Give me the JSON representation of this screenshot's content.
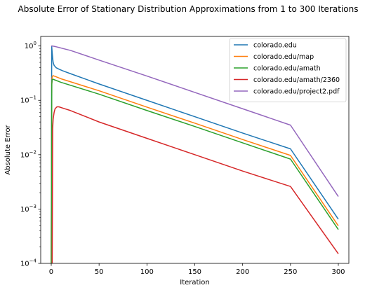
{
  "chart_data": {
    "type": "line",
    "title": "Absolute Error of Stationary Distribution Approximations from 1 to 300 Iterations",
    "xlabel": "Iteration",
    "ylabel": "Absolute Error",
    "xlim": [
      -11,
      311
    ],
    "ylim": [
      0.0001,
      1.5
    ],
    "yscale": "log",
    "xticks": [
      0,
      50,
      100,
      150,
      200,
      250,
      300
    ],
    "yticks": [
      {
        "value": 0.0001,
        "base": "10",
        "exp": "−4"
      },
      {
        "value": 0.001,
        "base": "10",
        "exp": "−3"
      },
      {
        "value": 0.01,
        "base": "10",
        "exp": "−2"
      },
      {
        "value": 0.1,
        "base": "10",
        "exp": "−1"
      },
      {
        "value": 1,
        "base": "10",
        "exp": "0"
      }
    ],
    "grid": false,
    "legend_position": "top-right",
    "series": [
      {
        "name": "colorado.edu",
        "color": "#1f77b4",
        "x": [
          0,
          0.5,
          1,
          1.5,
          2,
          3,
          5,
          8,
          12,
          20,
          50,
          100,
          150,
          200,
          250,
          300
        ],
        "y": [
          0.0001,
          0.98,
          0.75,
          0.6,
          0.5,
          0.44,
          0.4,
          0.375,
          0.35,
          0.31,
          0.2,
          0.1,
          0.05,
          0.025,
          0.0128,
          0.00065
        ]
      },
      {
        "name": "colorado.edu/map",
        "color": "#ff7f0e",
        "x": [
          0,
          0.6,
          1,
          2,
          3,
          5,
          10,
          50,
          100,
          150,
          200,
          250,
          300
        ],
        "y": [
          0.0001,
          0.2,
          0.27,
          0.285,
          0.28,
          0.272,
          0.25,
          0.15,
          0.075,
          0.038,
          0.019,
          0.0097,
          0.00049
        ]
      },
      {
        "name": "colorado.edu/amath",
        "color": "#2ca02c",
        "x": [
          0,
          0.6,
          1,
          2,
          3,
          5,
          10,
          50,
          100,
          150,
          200,
          250,
          300
        ],
        "y": [
          0.0001,
          0.2,
          0.24,
          0.245,
          0.24,
          0.233,
          0.215,
          0.13,
          0.065,
          0.033,
          0.0165,
          0.0083,
          0.00042
        ]
      },
      {
        "name": "colorado.edu/amath/2360",
        "color": "#d62728",
        "x": [
          1,
          1.5,
          2,
          3,
          4,
          6,
          8,
          12,
          20,
          50,
          100,
          150,
          200,
          250,
          300
        ],
        "y": [
          0.0001,
          0.03,
          0.045,
          0.06,
          0.07,
          0.076,
          0.076,
          0.072,
          0.065,
          0.04,
          0.02,
          0.01,
          0.005,
          0.0026,
          0.00015
        ]
      },
      {
        "name": "colorado.edu/project2.pdf",
        "color": "#9467bd",
        "x": [
          0,
          1,
          2,
          4,
          6,
          8,
          12,
          20,
          50,
          100,
          150,
          200,
          250,
          300
        ],
        "y": [
          1.0,
          1.0,
          0.995,
          0.98,
          0.96,
          0.94,
          0.9,
          0.83,
          0.55,
          0.28,
          0.14,
          0.07,
          0.035,
          0.0017
        ]
      }
    ]
  }
}
